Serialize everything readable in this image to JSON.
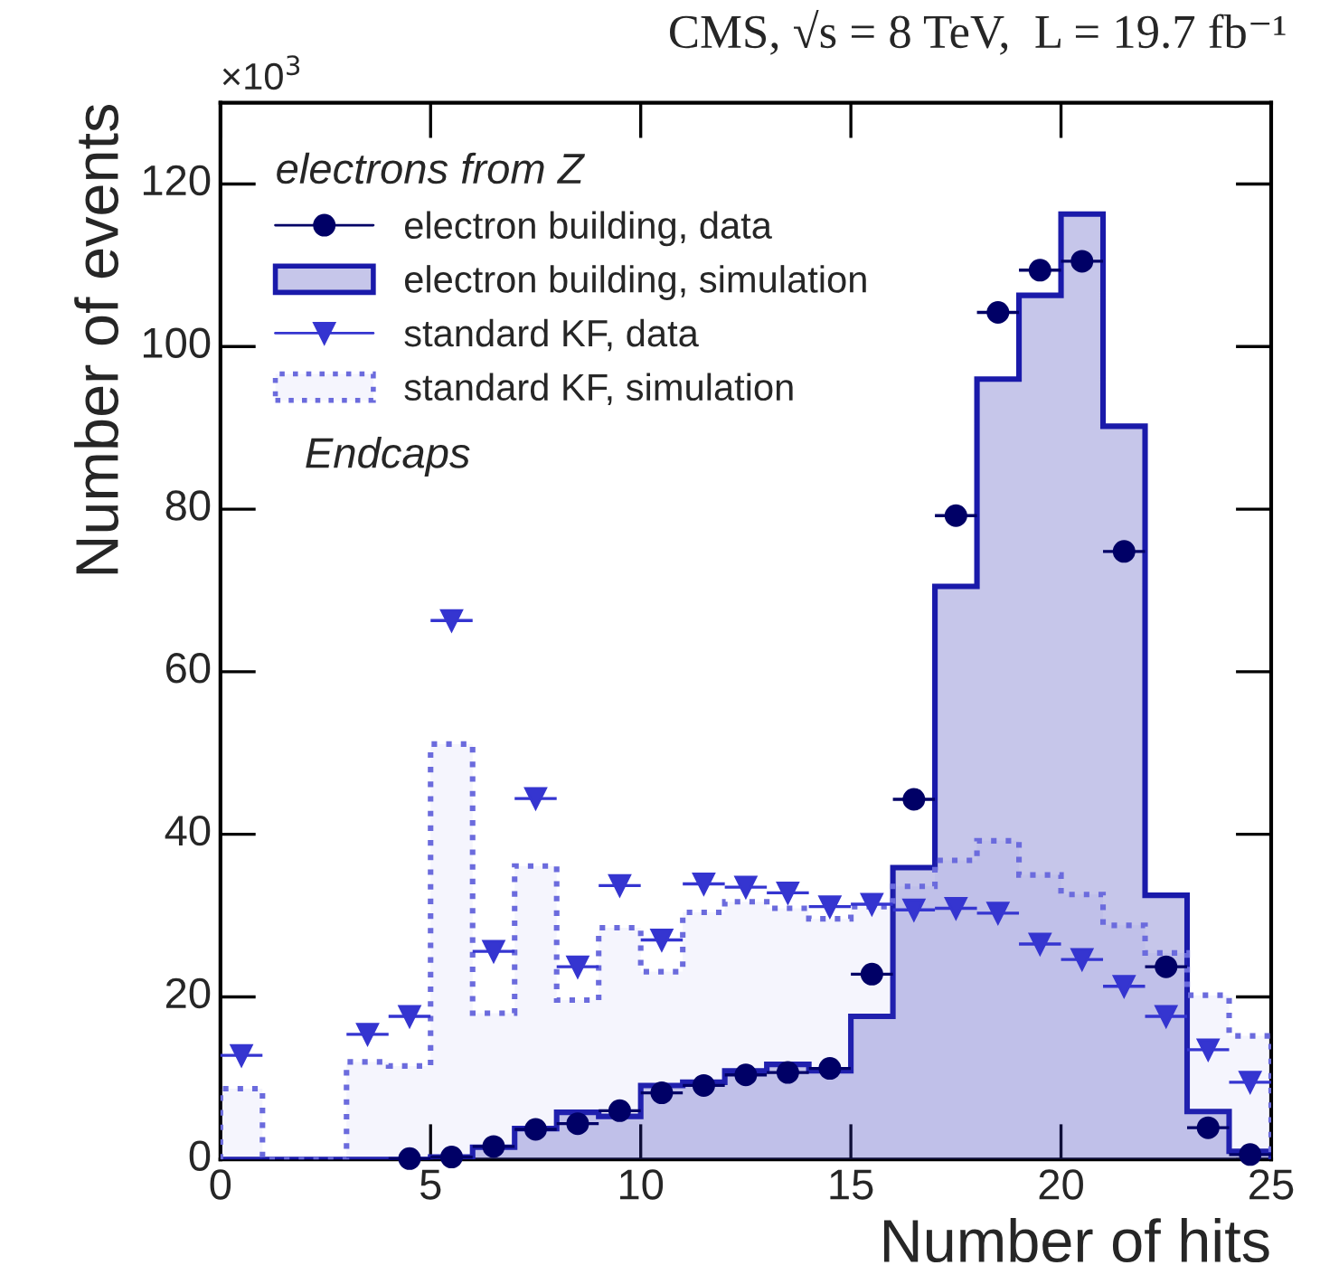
{
  "chart_data": {
    "type": "histogram",
    "title": "CMS, √s = 8 TeV,  L = 19.7 fb⁻¹",
    "xlabel": "Number of hits",
    "ylabel": "Number of events",
    "legend_title": "electrons from Z",
    "annotations": [
      "×10$^{3}$",
      "Endcaps"
    ],
    "bins": [
      0,
      1,
      2,
      3,
      4,
      5,
      6,
      7,
      8,
      9,
      10,
      11,
      12,
      13,
      14,
      15,
      16,
      17,
      18,
      19,
      20,
      21,
      22,
      23,
      24,
      25
    ],
    "series": [
      {
        "name": "electron building, data",
        "type": "scatter",
        "marker": "circle",
        "color": "#000066",
        "x": [
          4.5,
          5.5,
          6.5,
          7.5,
          8.5,
          9.5,
          10.5,
          11.5,
          12.5,
          13.5,
          14.5,
          15.5,
          16.5,
          17.5,
          18.5,
          19.5,
          20.5,
          21.5,
          22.5,
          23.5,
          24.5
        ],
        "values": [
          0.1,
          0.3,
          1.6,
          3.7,
          4.4,
          6.0,
          8.2,
          9.1,
          10.4,
          10.7,
          11.2,
          22.8,
          44.3,
          79.2,
          104.2,
          109.4,
          110.5,
          74.8,
          23.7,
          3.9,
          0.6
        ],
        "xerrors": [
          0.5,
          0.5,
          0.5,
          0.5,
          0.5,
          0.5,
          0.5,
          0.5,
          0.5,
          0.5,
          0.5,
          0.5,
          0.5,
          0.5,
          0.5,
          0.5,
          0.5,
          0.5,
          0.5,
          0.5,
          0.5
        ]
      },
      {
        "name": "electron building, simulation",
        "line_style": "solid",
        "color": "#1a1aaa",
        "values": [
          0,
          0,
          0,
          0,
          0,
          0.3,
          1.5,
          3.8,
          5.8,
          5.3,
          9.1,
          9.5,
          10.9,
          11.7,
          10.9,
          17.6,
          35.9,
          70.5,
          96.0,
          106.3,
          116.3,
          90.2,
          32.5,
          5.9,
          1.0
        ]
      },
      {
        "name": "standard KF, data",
        "type": "scatter",
        "marker": "triangle",
        "color": "#3535d0",
        "x": [
          0.5,
          3.5,
          4.5,
          5.5,
          6.5,
          7.5,
          8.5,
          9.5,
          10.5,
          11.5,
          12.5,
          13.5,
          14.5,
          15.5,
          16.5,
          17.5,
          18.5,
          19.5,
          20.5,
          21.5,
          22.5,
          23.5,
          24.5
        ],
        "values": [
          12.8,
          15.4,
          17.6,
          66.3,
          25.6,
          44.4,
          23.7,
          33.7,
          27.0,
          33.9,
          33.5,
          32.8,
          31.1,
          31.4,
          30.7,
          30.9,
          30.3,
          26.5,
          24.6,
          21.3,
          17.6,
          13.5,
          9.5
        ],
        "xerrors": [
          0.5,
          0.5,
          0.5,
          0.5,
          0.5,
          0.5,
          0.5,
          0.5,
          0.5,
          0.5,
          0.5,
          0.5,
          0.5,
          0.5,
          0.5,
          0.5,
          0.5,
          0.5,
          0.5,
          0.5,
          0.5,
          0.5,
          0.5
        ]
      },
      {
        "name": "standard KF, simulation",
        "line_style": "dotted",
        "color": "#6b6bdd",
        "values": [
          8.7,
          0,
          0,
          12.0,
          11.5,
          51.1,
          18.0,
          36.1,
          19.6,
          28.5,
          23.1,
          30.4,
          31.7,
          30.9,
          29.6,
          31.1,
          33.6,
          36.8,
          39.2,
          35.0,
          32.6,
          28.8,
          25.4,
          20.2,
          15.2
        ]
      }
    ],
    "xlim": [
      0,
      25
    ],
    "xticks": [
      0,
      5,
      10,
      15,
      20,
      25
    ],
    "ylim": [
      0,
      130
    ],
    "yticks": [
      0,
      20,
      40,
      60,
      80,
      100,
      120
    ],
    "grid": false,
    "legend": "top left"
  }
}
